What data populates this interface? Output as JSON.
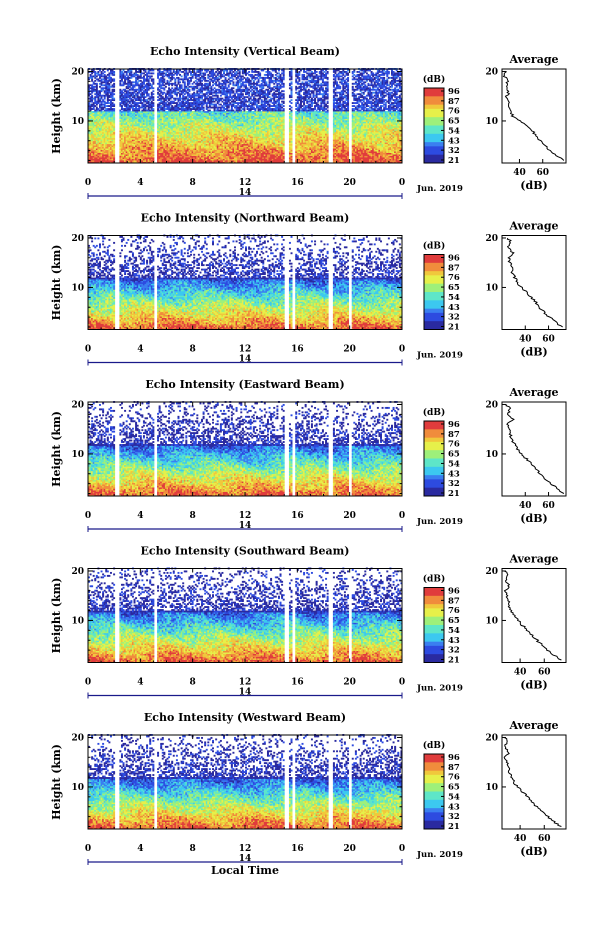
{
  "chart_data": [
    {
      "type": "heatmap",
      "title": "Echo Intensity (Vertical Beam)",
      "ylabel": "Height (km)",
      "xlabel": "",
      "x_ticks": [
        "0",
        "4",
        "8",
        "12",
        "16",
        "20",
        "0"
      ],
      "y_ticks": [
        "10",
        "20"
      ],
      "xlim": [
        0,
        24
      ],
      "ylim": [
        1.5,
        20.5
      ],
      "date_marker": "14",
      "date_label": "Jun. 2019",
      "colorbar": {
        "unit": "(dB)",
        "ticks": [
          "96",
          "87",
          "76",
          "65",
          "54",
          "43",
          "32",
          "21"
        ],
        "range": [
          21,
          96
        ]
      },
      "gaps": [
        [
          2.0,
          2.4
        ],
        [
          5.0,
          5.3
        ],
        [
          15.0,
          15.3
        ],
        [
          15.6,
          15.8
        ],
        [
          18.4,
          18.7
        ],
        [
          19.9,
          20.1
        ]
      ],
      "profile": {
        "title": "Average",
        "xlabel": "(dB)",
        "x_ticks": [
          "40",
          "60"
        ],
        "y_ticks": [
          "10",
          "20"
        ],
        "xlim": [
          25,
          80
        ],
        "heights": [
          2,
          3,
          4,
          5,
          6,
          7,
          8,
          9,
          10,
          11,
          12,
          13,
          14,
          15,
          16,
          17,
          18,
          19,
          20
        ],
        "values": [
          78,
          72,
          66,
          62,
          58,
          54,
          51,
          46,
          40,
          34,
          33,
          31,
          30,
          29,
          31,
          28,
          30,
          27,
          29
        ]
      }
    },
    {
      "type": "heatmap",
      "title": "Echo Intensity (Northward Beam)",
      "ylabel": "Height (km)",
      "xlabel": "",
      "x_ticks": [
        "0",
        "4",
        "8",
        "12",
        "16",
        "20",
        "0"
      ],
      "y_ticks": [
        "10",
        "20"
      ],
      "xlim": [
        0,
        24
      ],
      "ylim": [
        1.5,
        20.5
      ],
      "date_marker": "14",
      "date_label": "Jun. 2019",
      "colorbar": {
        "unit": "(dB)",
        "ticks": [
          "96",
          "87",
          "76",
          "65",
          "54",
          "43",
          "32",
          "21"
        ],
        "range": [
          21,
          96
        ]
      },
      "gaps": [
        [
          2.0,
          2.4
        ],
        [
          5.0,
          5.3
        ],
        [
          15.0,
          15.3
        ],
        [
          15.6,
          15.8
        ],
        [
          18.4,
          18.7
        ],
        [
          19.9,
          20.1
        ]
      ],
      "profile": {
        "title": "Average",
        "xlabel": "(dB)",
        "x_ticks": [
          "40",
          "60"
        ],
        "y_ticks": [
          "10",
          "20"
        ],
        "xlim": [
          20,
          75
        ],
        "heights": [
          2,
          3,
          4,
          5,
          6,
          7,
          8,
          9,
          10,
          11,
          12,
          13,
          14,
          15,
          16,
          17,
          18,
          19,
          20
        ],
        "values": [
          72,
          66,
          61,
          56,
          52,
          49,
          45,
          41,
          37,
          33,
          31,
          29,
          28,
          27,
          26,
          29,
          25,
          28,
          25
        ]
      }
    },
    {
      "type": "heatmap",
      "title": "Echo Intensity (Eastward Beam)",
      "ylabel": "Height (km)",
      "xlabel": "",
      "x_ticks": [
        "0",
        "4",
        "8",
        "12",
        "16",
        "20",
        "0"
      ],
      "y_ticks": [
        "10",
        "20"
      ],
      "xlim": [
        0,
        24
      ],
      "ylim": [
        1.5,
        20.5
      ],
      "date_marker": "14",
      "date_label": "Jun. 2019",
      "colorbar": {
        "unit": "(dB)",
        "ticks": [
          "96",
          "87",
          "76",
          "65",
          "54",
          "43",
          "32",
          "21"
        ],
        "range": [
          21,
          96
        ]
      },
      "gaps": [
        [
          2.0,
          2.4
        ],
        [
          5.0,
          5.3
        ],
        [
          15.0,
          15.3
        ],
        [
          15.6,
          15.8
        ],
        [
          18.4,
          18.7
        ],
        [
          19.9,
          20.1
        ]
      ],
      "profile": {
        "title": "Average",
        "xlabel": "(dB)",
        "x_ticks": [
          "40",
          "60"
        ],
        "y_ticks": [
          "10",
          "20"
        ],
        "xlim": [
          20,
          75
        ],
        "heights": [
          2,
          3,
          4,
          5,
          6,
          7,
          8,
          9,
          10,
          11,
          12,
          13,
          14,
          15,
          16,
          17,
          18,
          19,
          20
        ],
        "values": [
          73,
          67,
          62,
          57,
          53,
          49,
          45,
          41,
          37,
          33,
          31,
          28,
          27,
          27,
          25,
          29,
          24,
          27,
          24
        ]
      }
    },
    {
      "type": "heatmap",
      "title": "Echo Intensity (Southward Beam)",
      "ylabel": "Height (km)",
      "xlabel": "",
      "x_ticks": [
        "0",
        "4",
        "8",
        "12",
        "16",
        "20",
        "0"
      ],
      "y_ticks": [
        "10",
        "20"
      ],
      "xlim": [
        0,
        24
      ],
      "ylim": [
        1.5,
        20.5
      ],
      "date_marker": "14",
      "date_label": "Jun. 2019",
      "colorbar": {
        "unit": "(dB)",
        "ticks": [
          "96",
          "87",
          "76",
          "65",
          "54",
          "43",
          "32",
          "21"
        ],
        "range": [
          21,
          96
        ]
      },
      "gaps": [
        [
          2.0,
          2.4
        ],
        [
          5.0,
          5.3
        ],
        [
          15.0,
          15.3
        ],
        [
          15.6,
          15.8
        ],
        [
          18.4,
          18.7
        ],
        [
          19.9,
          20.1
        ]
      ],
      "profile": {
        "title": "Average",
        "xlabel": "(dB)",
        "x_ticks": [
          "40",
          "60"
        ],
        "y_ticks": [
          "10",
          "20"
        ],
        "xlim": [
          25,
          78
        ],
        "heights": [
          2,
          3,
          4,
          5,
          6,
          7,
          8,
          9,
          10,
          11,
          12,
          13,
          14,
          15,
          16,
          17,
          18,
          19,
          20
        ],
        "values": [
          74,
          68,
          63,
          58,
          54,
          50,
          46,
          42,
          38,
          35,
          33,
          31,
          30,
          29,
          28,
          31,
          27,
          30,
          27
        ]
      }
    },
    {
      "type": "heatmap",
      "title": "Echo Intensity (Westward Beam)",
      "ylabel": "Height (km)",
      "xlabel": "Local Time",
      "x_ticks": [
        "0",
        "4",
        "8",
        "12",
        "16",
        "20",
        "0"
      ],
      "y_ticks": [
        "10",
        "20"
      ],
      "xlim": [
        0,
        24
      ],
      "ylim": [
        1.5,
        20.5
      ],
      "date_marker": "14",
      "date_label": "Jun. 2019",
      "colorbar": {
        "unit": "(dB)",
        "ticks": [
          "96",
          "87",
          "76",
          "65",
          "54",
          "43",
          "32",
          "21"
        ],
        "range": [
          21,
          96
        ]
      },
      "gaps": [
        [
          2.0,
          2.4
        ],
        [
          5.0,
          5.3
        ],
        [
          15.0,
          15.3
        ],
        [
          15.6,
          15.8
        ],
        [
          18.4,
          18.7
        ],
        [
          19.9,
          20.1
        ]
      ],
      "profile": {
        "title": "Average",
        "xlabel": "(dB)",
        "x_ticks": [
          "40",
          "60"
        ],
        "y_ticks": [
          "10",
          "20"
        ],
        "xlim": [
          25,
          78
        ],
        "heights": [
          2,
          3,
          4,
          5,
          6,
          7,
          8,
          9,
          10,
          11,
          12,
          13,
          14,
          15,
          16,
          17,
          18,
          19,
          20
        ],
        "values": [
          74,
          68,
          63,
          58,
          54,
          50,
          46,
          42,
          38,
          35,
          33,
          31,
          30,
          29,
          28,
          31,
          27,
          30,
          27
        ]
      }
    }
  ],
  "colors": {
    "colormap": [
      "#2a2aa0",
      "#2d4be0",
      "#3a7ff0",
      "#3cc8f0",
      "#5ee6c8",
      "#9ef07a",
      "#e6f04a",
      "#f0c83c",
      "#f08c3c",
      "#e03c3c"
    ]
  }
}
